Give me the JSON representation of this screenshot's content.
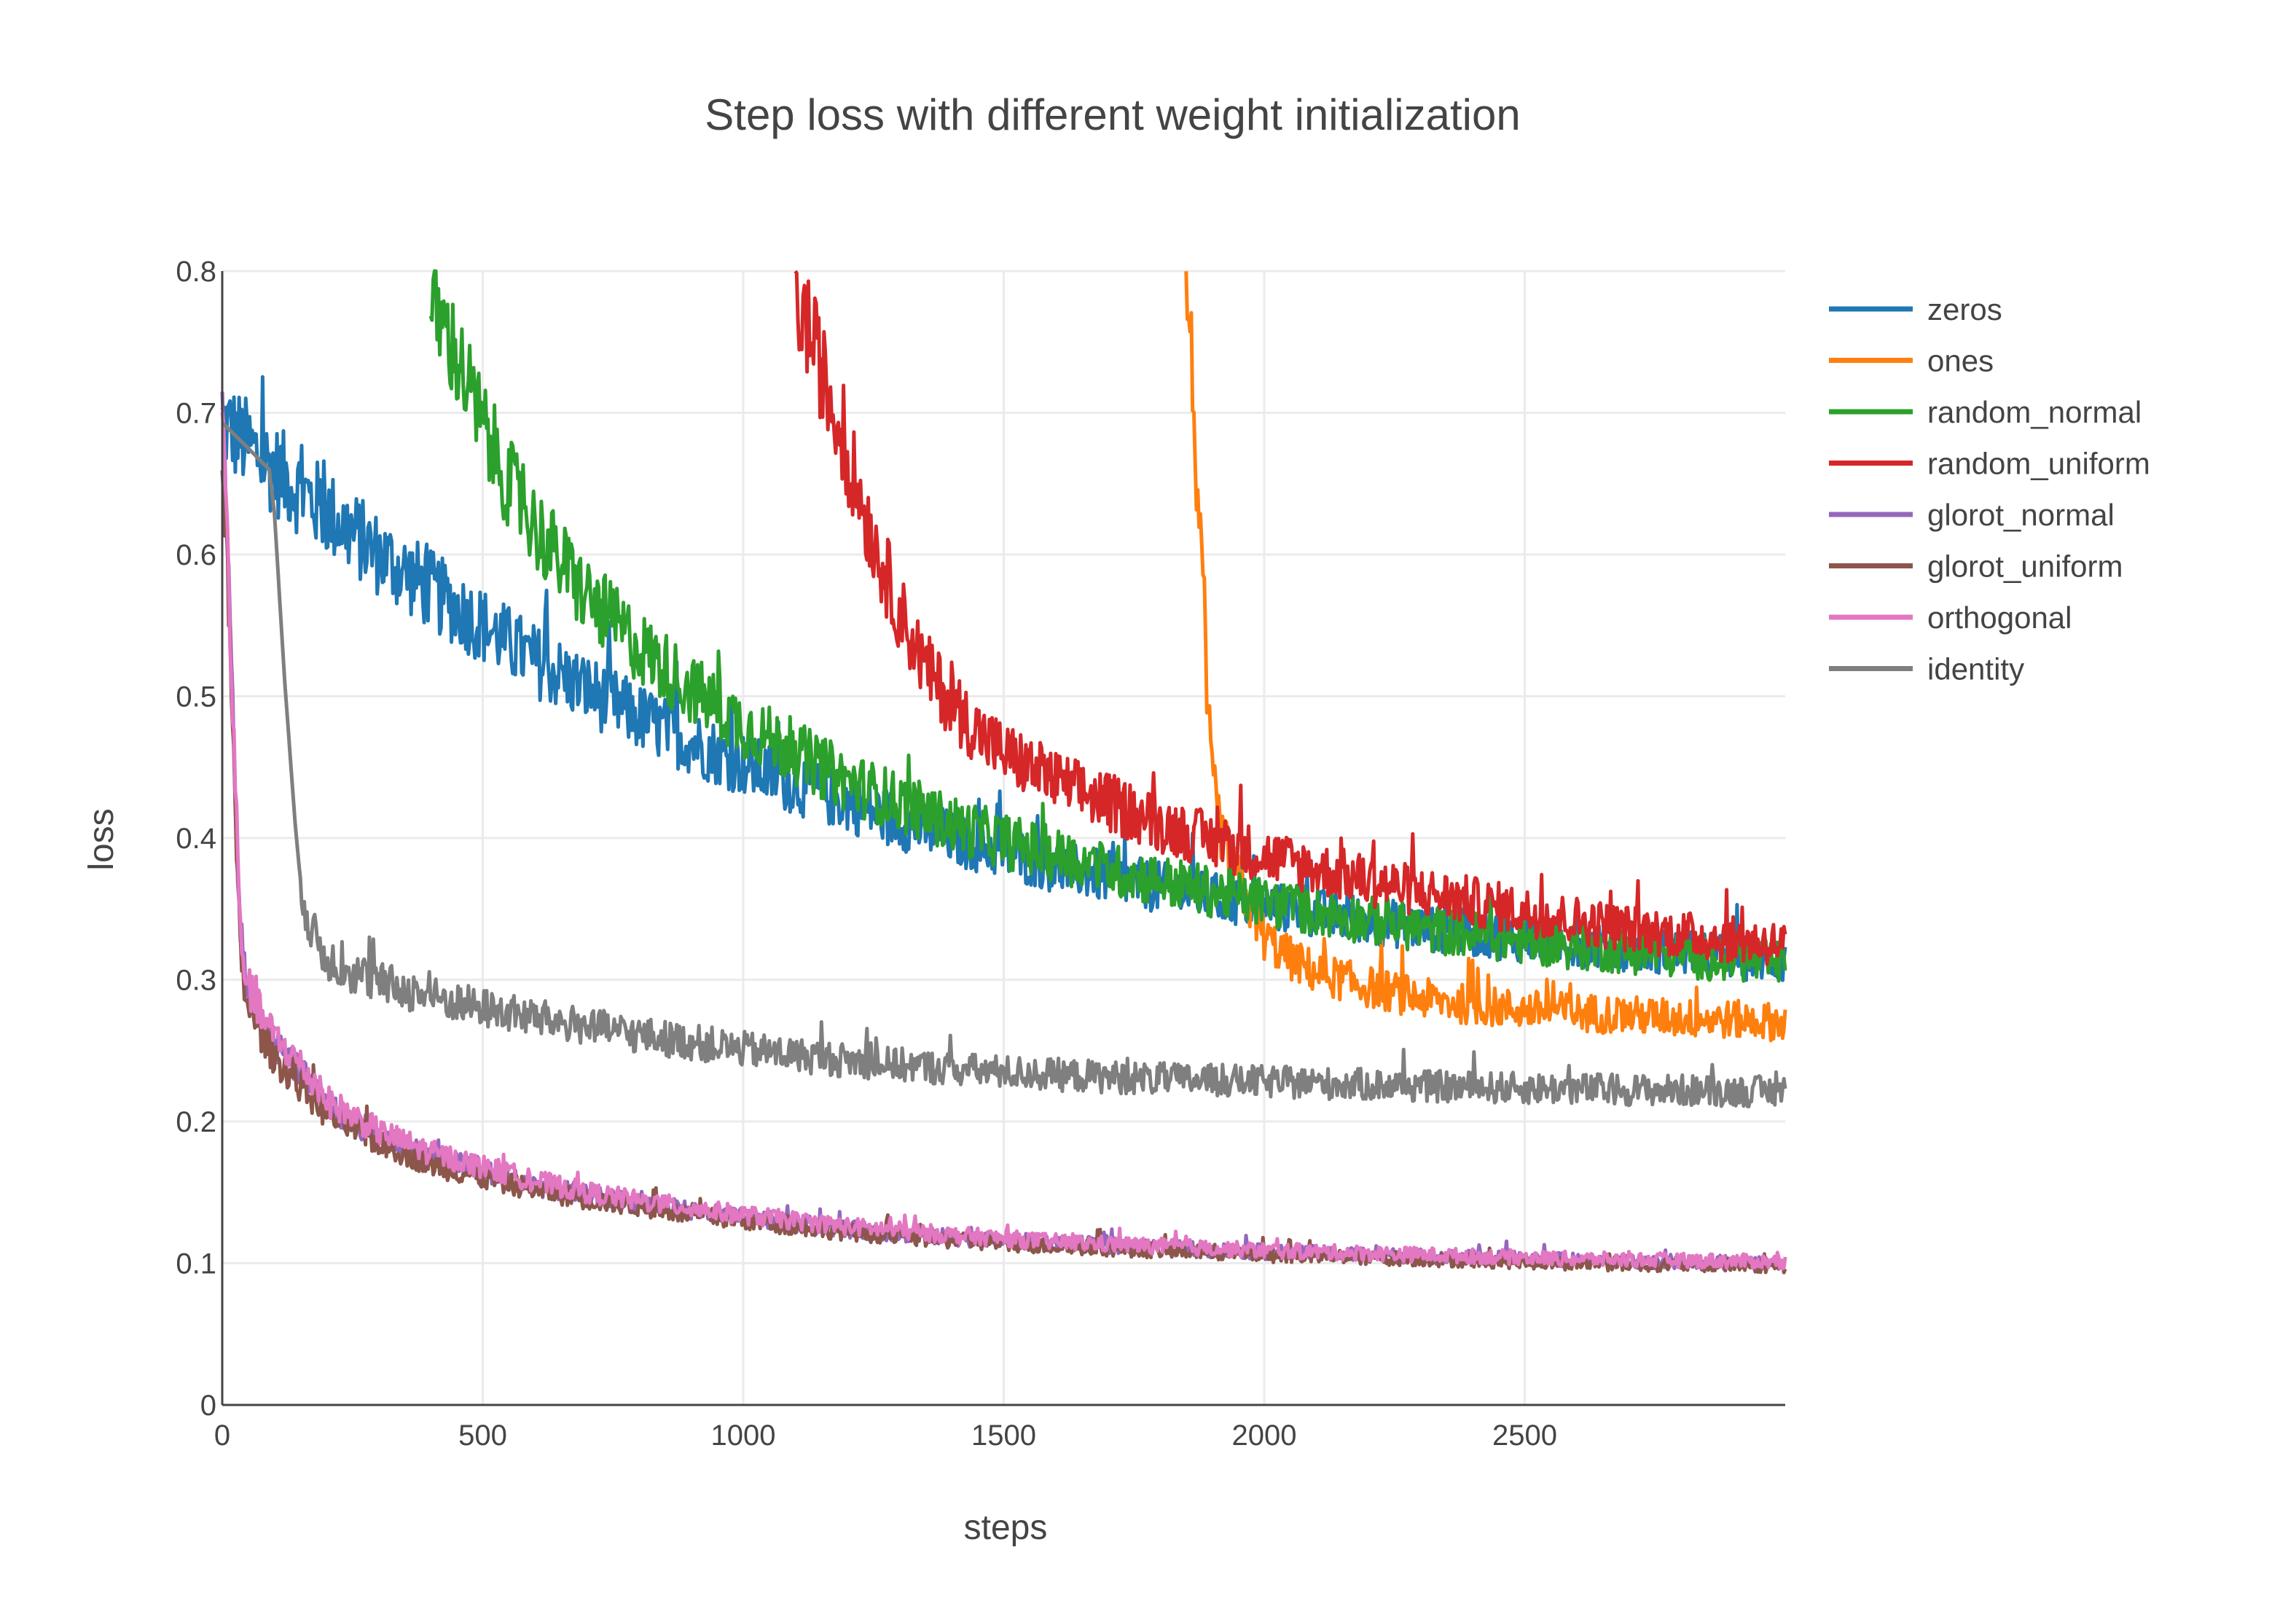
{
  "chart_data": {
    "type": "line",
    "title": "Step loss with different weight initialization",
    "xlabel": "steps",
    "ylabel": "loss",
    "xlim": [
      0,
      3000
    ],
    "ylim": [
      0,
      0.8
    ],
    "x_ticks": [
      0,
      500,
      1000,
      1500,
      2000,
      2500
    ],
    "x_tick_labels": [
      "0",
      "500",
      "1000",
      "1500",
      "2000",
      "2500"
    ],
    "y_ticks": [
      0,
      0.1,
      0.2,
      0.3,
      0.4,
      0.5,
      0.6,
      0.7,
      0.8
    ],
    "y_tick_labels": [
      "0",
      "0.1",
      "0.2",
      "0.3",
      "0.4",
      "0.5",
      "0.6",
      "0.7",
      "0.8"
    ],
    "grid": true,
    "legend_position": "right",
    "series": [
      {
        "name": "zeros",
        "color": "#1f77b4",
        "x": [
          0,
          100,
          200,
          300,
          400,
          500,
          600,
          700,
          800,
          900,
          1000,
          1100,
          1200,
          1300,
          1400,
          1500,
          1600,
          1700,
          1800,
          1900,
          2000,
          2100,
          2200,
          2300,
          2400,
          2500,
          2600,
          2700,
          2800,
          2900,
          3000
        ],
        "y": [
          0.693,
          0.66,
          0.63,
          0.6,
          0.575,
          0.55,
          0.525,
          0.505,
          0.485,
          0.468,
          0.452,
          0.438,
          0.425,
          0.412,
          0.4,
          0.39,
          0.38,
          0.372,
          0.365,
          0.358,
          0.352,
          0.347,
          0.342,
          0.337,
          0.333,
          0.329,
          0.325,
          0.322,
          0.319,
          0.316,
          0.313
        ]
      },
      {
        "name": "ones",
        "color": "#ff7f0e",
        "x": [
          1850,
          1860,
          1870,
          1880,
          1890,
          1900,
          1920,
          1950,
          2000,
          2050,
          2100,
          2200,
          2300,
          2400,
          2500,
          2600,
          2700,
          2800,
          2900,
          3000
        ],
        "y": [
          0.8,
          0.74,
          0.66,
          0.58,
          0.5,
          0.44,
          0.4,
          0.37,
          0.33,
          0.315,
          0.305,
          0.295,
          0.287,
          0.282,
          0.279,
          0.277,
          0.275,
          0.273,
          0.272,
          0.27
        ]
      },
      {
        "name": "random_normal",
        "color": "#2ca02c",
        "x": [
          400,
          450,
          500,
          550,
          600,
          700,
          800,
          900,
          1000,
          1100,
          1200,
          1300,
          1400,
          1500,
          1600,
          1700,
          1800,
          1900,
          2000,
          2100,
          2200,
          2300,
          2400,
          2500,
          2600,
          2700,
          2800,
          2900,
          3000
        ],
        "y": [
          0.78,
          0.74,
          0.69,
          0.65,
          0.62,
          0.57,
          0.535,
          0.505,
          0.48,
          0.46,
          0.44,
          0.425,
          0.41,
          0.398,
          0.388,
          0.378,
          0.37,
          0.362,
          0.355,
          0.348,
          0.342,
          0.336,
          0.332,
          0.327,
          0.323,
          0.32,
          0.317,
          0.314,
          0.311
        ]
      },
      {
        "name": "random_uniform",
        "color": "#d62728",
        "x": [
          1100,
          1125,
          1150,
          1200,
          1250,
          1300,
          1350,
          1400,
          1450,
          1500,
          1600,
          1700,
          1800,
          1900,
          2000,
          2100,
          2200,
          2300,
          2400,
          2500,
          2600,
          2700,
          2800,
          2900,
          3000
        ],
        "y": [
          0.78,
          0.76,
          0.73,
          0.67,
          0.61,
          0.56,
          0.52,
          0.495,
          0.475,
          0.46,
          0.44,
          0.425,
          0.41,
          0.398,
          0.388,
          0.378,
          0.37,
          0.362,
          0.355,
          0.348,
          0.342,
          0.336,
          0.332,
          0.328,
          0.325
        ]
      },
      {
        "name": "glorot_normal",
        "color": "#9467bd",
        "x": [
          0,
          10,
          20,
          30,
          40,
          50,
          75,
          100,
          150,
          200,
          300,
          400,
          500,
          600,
          700,
          800,
          900,
          1000,
          1200,
          1400,
          1600,
          1800,
          2000,
          2200,
          2400,
          2600,
          2800,
          3000
        ],
        "y": [
          0.693,
          0.6,
          0.48,
          0.37,
          0.31,
          0.29,
          0.27,
          0.255,
          0.235,
          0.21,
          0.19,
          0.175,
          0.165,
          0.155,
          0.148,
          0.142,
          0.137,
          0.132,
          0.124,
          0.118,
          0.114,
          0.111,
          0.108,
          0.106,
          0.104,
          0.102,
          0.101,
          0.1
        ]
      },
      {
        "name": "glorot_uniform",
        "color": "#8c564b",
        "x": [
          0,
          10,
          20,
          30,
          40,
          50,
          75,
          100,
          150,
          200,
          300,
          400,
          500,
          600,
          700,
          800,
          900,
          1000,
          1200,
          1400,
          1600,
          1800,
          2000,
          2200,
          2400,
          2600,
          2800,
          3000
        ],
        "y": [
          0.693,
          0.59,
          0.47,
          0.36,
          0.3,
          0.28,
          0.262,
          0.245,
          0.225,
          0.205,
          0.185,
          0.17,
          0.16,
          0.152,
          0.145,
          0.14,
          0.134,
          0.13,
          0.122,
          0.116,
          0.112,
          0.109,
          0.106,
          0.104,
          0.102,
          0.1,
          0.099,
          0.098
        ]
      },
      {
        "name": "orthogonal",
        "color": "#e377c2",
        "x": [
          0,
          10,
          20,
          30,
          40,
          50,
          75,
          100,
          150,
          200,
          300,
          400,
          500,
          600,
          700,
          800,
          900,
          1000,
          1200,
          1400,
          1600,
          1800,
          2000,
          2200,
          2400,
          2600,
          2800,
          3000
        ],
        "y": [
          0.693,
          0.61,
          0.49,
          0.38,
          0.315,
          0.295,
          0.275,
          0.26,
          0.24,
          0.215,
          0.193,
          0.178,
          0.168,
          0.158,
          0.15,
          0.144,
          0.139,
          0.134,
          0.126,
          0.12,
          0.115,
          0.112,
          0.109,
          0.107,
          0.105,
          0.103,
          0.102,
          0.101
        ]
      },
      {
        "name": "identity",
        "color": "#7f7f7f",
        "x": [
          0,
          50,
          90,
          100,
          110,
          120,
          130,
          140,
          150,
          170,
          200,
          250,
          300,
          400,
          500,
          600,
          700,
          800,
          900,
          1000,
          1100,
          1200,
          1400,
          1600,
          1800,
          2000,
          2200,
          2400,
          2600,
          2800,
          3000
        ],
        "y": [
          0.693,
          0.675,
          0.66,
          0.63,
          0.57,
          0.51,
          0.46,
          0.41,
          0.37,
          0.335,
          0.315,
          0.305,
          0.298,
          0.288,
          0.28,
          0.273,
          0.267,
          0.261,
          0.256,
          0.251,
          0.247,
          0.243,
          0.237,
          0.233,
          0.23,
          0.228,
          0.226,
          0.224,
          0.223,
          0.222,
          0.221
        ]
      }
    ]
  }
}
